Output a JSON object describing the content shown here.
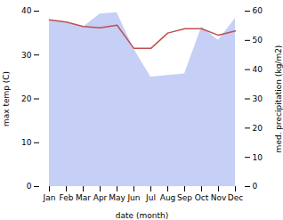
{
  "chart_data": {
    "type": "line",
    "categories": [
      "Jan",
      "Feb",
      "Mar",
      "Apr",
      "May",
      "Jun",
      "Jul",
      "Aug",
      "Sep",
      "Oct",
      "Nov",
      "Dec"
    ],
    "series": [
      {
        "type": "area",
        "axis": "y2",
        "color": "#c6cff5",
        "values": [
          57.0,
          56.0,
          54.5,
          59.0,
          59.5,
          47.0,
          37.5,
          38.0,
          38.5,
          54.5,
          50.0,
          57.5
        ]
      },
      {
        "type": "line",
        "color": "#c0504d",
        "values": [
          38.0,
          37.5,
          36.5,
          36.2,
          36.8,
          31.5,
          31.5,
          35.0,
          36.0,
          36.0,
          34.5,
          35.5
        ]
      }
    ],
    "xlabel": "date (month)",
    "ylabel": "max temp (C)",
    "y2label": "med. precipitation (kg/m2)",
    "ylim": [
      0,
      40
    ],
    "yticks": [
      0,
      10,
      20,
      30,
      40
    ],
    "y2lim": [
      0,
      60
    ],
    "y2ticks": [
      0,
      10,
      20,
      30,
      40,
      50,
      60
    ]
  }
}
